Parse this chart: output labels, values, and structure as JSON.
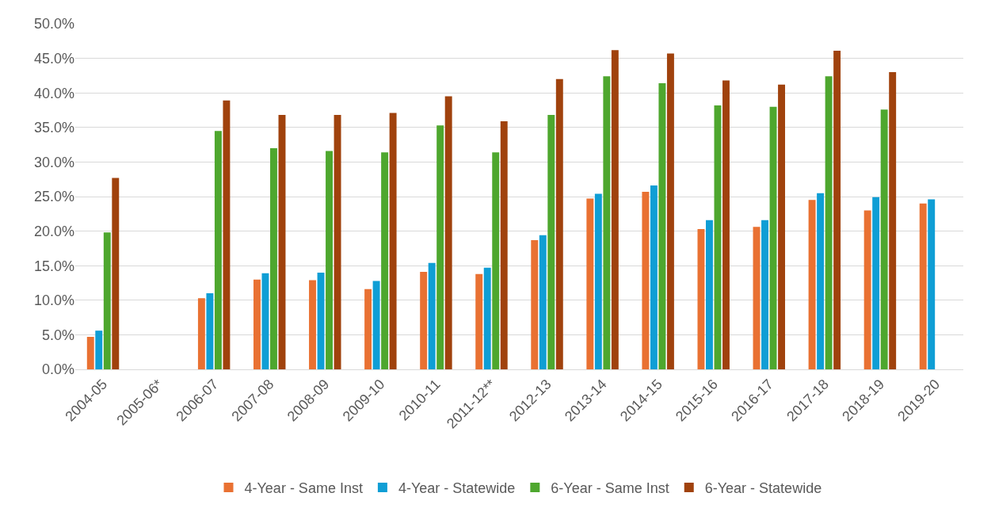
{
  "chart_data": {
    "type": "bar",
    "categories": [
      "2004-05",
      "2005-06*",
      "2006-07",
      "2007-08",
      "2008-09",
      "2009-10",
      "2010-11",
      "2011-12**",
      "2012-13",
      "2013-14",
      "2014-15",
      "2015-16",
      "2016-17",
      "2017-18",
      "2018-19",
      "2019-20"
    ],
    "series": [
      {
        "name": "4-Year - Same Inst",
        "color": "#e97132",
        "values": [
          4.7,
          null,
          10.3,
          13.0,
          12.9,
          11.6,
          14.1,
          13.8,
          18.7,
          24.7,
          25.7,
          20.3,
          20.6,
          24.5,
          23.0,
          24.0
        ]
      },
      {
        "name": "4-Year - Statewide",
        "color": "#0f9ed5",
        "values": [
          5.6,
          null,
          11.0,
          13.9,
          14.0,
          12.8,
          15.4,
          14.7,
          19.4,
          25.4,
          26.6,
          21.6,
          21.6,
          25.5,
          24.9,
          24.6
        ]
      },
      {
        "name": "6-Year - Same Inst",
        "color": "#4ea72e",
        "values": [
          19.8,
          null,
          34.5,
          32.0,
          31.6,
          31.4,
          35.3,
          31.4,
          36.8,
          42.4,
          41.4,
          38.2,
          38.0,
          42.4,
          37.6,
          null
        ]
      },
      {
        "name": "6-Year - Statewide",
        "color": "#a0420d",
        "values": [
          27.7,
          null,
          38.9,
          36.8,
          36.8,
          37.1,
          39.5,
          35.9,
          42.0,
          46.2,
          45.7,
          41.8,
          41.2,
          46.1,
          43.0,
          null
        ]
      }
    ],
    "ylim": [
      0,
      50
    ],
    "yticks": [
      {
        "value": 0,
        "label": "0.0%"
      },
      {
        "value": 5,
        "label": "5.0%"
      },
      {
        "value": 10,
        "label": "10.0%"
      },
      {
        "value": 15,
        "label": "15.0%"
      },
      {
        "value": 20,
        "label": "20.0%"
      },
      {
        "value": 25,
        "label": "25.0%"
      },
      {
        "value": 30,
        "label": "30.0%"
      },
      {
        "value": 35,
        "label": "35.0%"
      },
      {
        "value": 40,
        "label": "40.0%"
      },
      {
        "value": 45,
        "label": "45.0%"
      },
      {
        "value": 50,
        "label": "50.0%"
      }
    ],
    "grid": "y",
    "legend": "bottom"
  }
}
